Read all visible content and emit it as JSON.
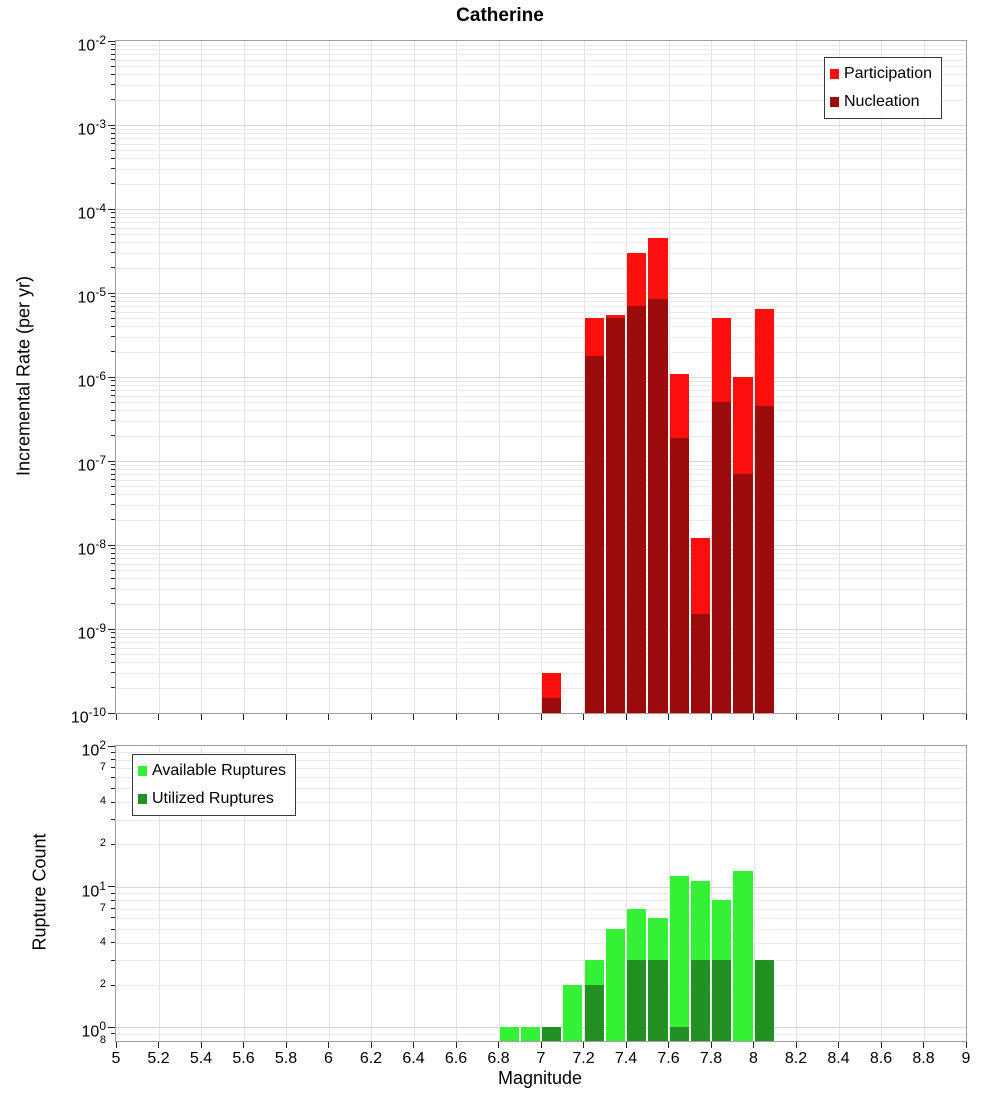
{
  "page": {
    "title": "Catherine"
  },
  "chart_data": [
    {
      "type": "bar",
      "title": "Catherine",
      "ylabel": "Incremental Rate (per yr)",
      "xlabel": "",
      "yscale": "log",
      "ylim": [
        1e-10,
        0.01
      ],
      "xlim": [
        5,
        9
      ],
      "bin_width": 0.1,
      "grid": true,
      "x_ticks": [
        5,
        5.2,
        5.4,
        5.6,
        5.8,
        6,
        6.2,
        6.4,
        6.6,
        6.8,
        7,
        7.2,
        7.4,
        7.6,
        7.8,
        8,
        8.2,
        8.4,
        8.6,
        8.8,
        9
      ],
      "y_tick_exponents": [
        -2,
        -3,
        -4,
        -5,
        -6,
        -7,
        -8,
        -9,
        -10
      ],
      "legend": {
        "position": "top-right",
        "items": [
          {
            "label": "Participation",
            "color": "#fb0f0c"
          },
          {
            "label": "Nucleation",
            "color": "#9b0b0b"
          }
        ]
      },
      "series": [
        {
          "name": "Participation",
          "color": "#fb0f0c",
          "x": [
            7.0,
            7.2,
            7.3,
            7.4,
            7.5,
            7.6,
            7.7,
            7.8,
            7.9,
            8.0
          ],
          "values": [
            3e-10,
            5e-06,
            5.5e-06,
            3e-05,
            4.5e-05,
            1.1e-06,
            1.2e-08,
            5e-06,
            1e-06,
            6.5e-06
          ]
        },
        {
          "name": "Nucleation",
          "color": "#9b0b0b",
          "x": [
            7.0,
            7.2,
            7.3,
            7.4,
            7.5,
            7.6,
            7.7,
            7.8,
            7.9,
            8.0
          ],
          "values": [
            1.5e-10,
            1.8e-06,
            5e-06,
            7e-06,
            8.5e-06,
            1.9e-07,
            1.5e-09,
            5e-07,
            7e-08,
            4.5e-07
          ]
        }
      ]
    },
    {
      "type": "bar",
      "title": "",
      "ylabel": "Rupture Count",
      "xlabel": "Magnitude",
      "yscale": "log",
      "ylim": [
        0.8,
        100
      ],
      "xlim": [
        5,
        9
      ],
      "bin_width": 0.1,
      "grid": true,
      "x_ticks": [
        5,
        5.2,
        5.4,
        5.6,
        5.8,
        6,
        6.2,
        6.4,
        6.6,
        6.8,
        7,
        7.2,
        7.4,
        7.6,
        7.8,
        8,
        8.2,
        8.4,
        8.6,
        8.8,
        9
      ],
      "x_tick_labels": [
        "5",
        "5.2",
        "5.4",
        "5.6",
        "5.8",
        "6",
        "6.2",
        "6.4",
        "6.6",
        "6.8",
        "7",
        "7.2",
        "7.4",
        "7.6",
        "7.8",
        "8",
        "8.2",
        "8.4",
        "8.6",
        "8.8",
        "9"
      ],
      "y_tick_exponents": [
        2,
        1,
        0
      ],
      "y_minor_labels": [
        {
          "v": 70,
          "t": "7"
        },
        {
          "v": 40,
          "t": "4"
        },
        {
          "v": 20,
          "t": "2"
        },
        {
          "v": 7,
          "t": "7"
        },
        {
          "v": 4,
          "t": "4"
        },
        {
          "v": 2,
          "t": "2"
        },
        {
          "v": 0.8,
          "t": "8"
        }
      ],
      "legend": {
        "position": "top-left",
        "items": [
          {
            "label": "Available Ruptures",
            "color": "#35f135"
          },
          {
            "label": "Utilized Ruptures",
            "color": "#229022"
          }
        ]
      },
      "series": [
        {
          "name": "Available Ruptures",
          "color": "#35f135",
          "x": [
            6.8,
            6.9,
            7.0,
            7.1,
            7.2,
            7.3,
            7.4,
            7.5,
            7.6,
            7.7,
            7.8,
            7.9,
            8.0
          ],
          "values": [
            1,
            1,
            1,
            2,
            3,
            5,
            7,
            6,
            12,
            11,
            8,
            13,
            3
          ]
        },
        {
          "name": "Utilized Ruptures",
          "color": "#229022",
          "x": [
            7.0,
            7.2,
            7.4,
            7.5,
            7.6,
            7.7,
            7.8,
            8.0
          ],
          "values": [
            1,
            2,
            3,
            3,
            1,
            3,
            3,
            3
          ]
        }
      ]
    }
  ]
}
